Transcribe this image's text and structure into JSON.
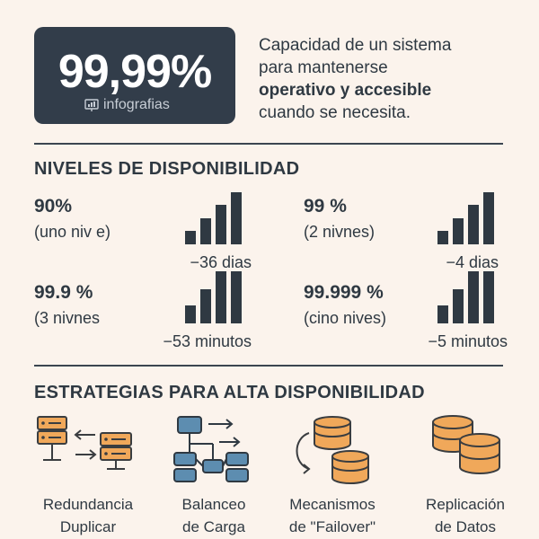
{
  "hero": {
    "value": "99,99%",
    "brand": "infografias",
    "description_line1": "Capacidad de un sistema",
    "description_line2": "para mantenerse",
    "description_line3": "operativo y accesible",
    "description_line4": "cuando se necesita."
  },
  "levels": {
    "title": "NIVELES DE DISPONIBILIDAD",
    "items": [
      {
        "percent": "90%",
        "label": "(uno niv e)",
        "downtime": "−36 dias",
        "bar_levels": [
          0.25,
          0.5,
          0.75,
          1.0
        ]
      },
      {
        "percent": "99 %",
        "label": "(2 nivnes)",
        "downtime": "−4 dias",
        "bar_levels": [
          0.25,
          0.5,
          0.75,
          1.0
        ]
      },
      {
        "percent": "99.9 %",
        "label": "(3 nivnes",
        "downtime": "−53 minutos",
        "bar_levels": [
          0.35,
          0.65,
          1.0,
          1.0
        ]
      },
      {
        "percent": "99.999 %",
        "label": "(cino nives)",
        "downtime": "−5 minutos",
        "bar_levels": [
          0.35,
          0.65,
          1.0,
          1.0
        ]
      }
    ]
  },
  "strategies": {
    "title": "ESTRATEGIAS PARA ALTA DISPONIBILIDAD",
    "items": [
      {
        "line1": "Redundancia",
        "line2": "Duplicar",
        "icon": "redundancy-servers-icon"
      },
      {
        "line1": "Balanceo",
        "line2": "de Carga",
        "icon": "load-balancer-icon"
      },
      {
        "line1": "Mecanismos",
        "line2": "de \"Failover\"",
        "icon": "failover-databases-icon"
      },
      {
        "line1": "Replicación",
        "line2": "de Datos",
        "icon": "replication-databases-icon"
      }
    ]
  },
  "colors": {
    "background": "#fbf3ec",
    "dark": "#2f3942",
    "hero_bg": "#323d4a",
    "orange": "#f0a85a",
    "orange_stroke": "#3a3d40",
    "blue": "#5d8db0"
  }
}
